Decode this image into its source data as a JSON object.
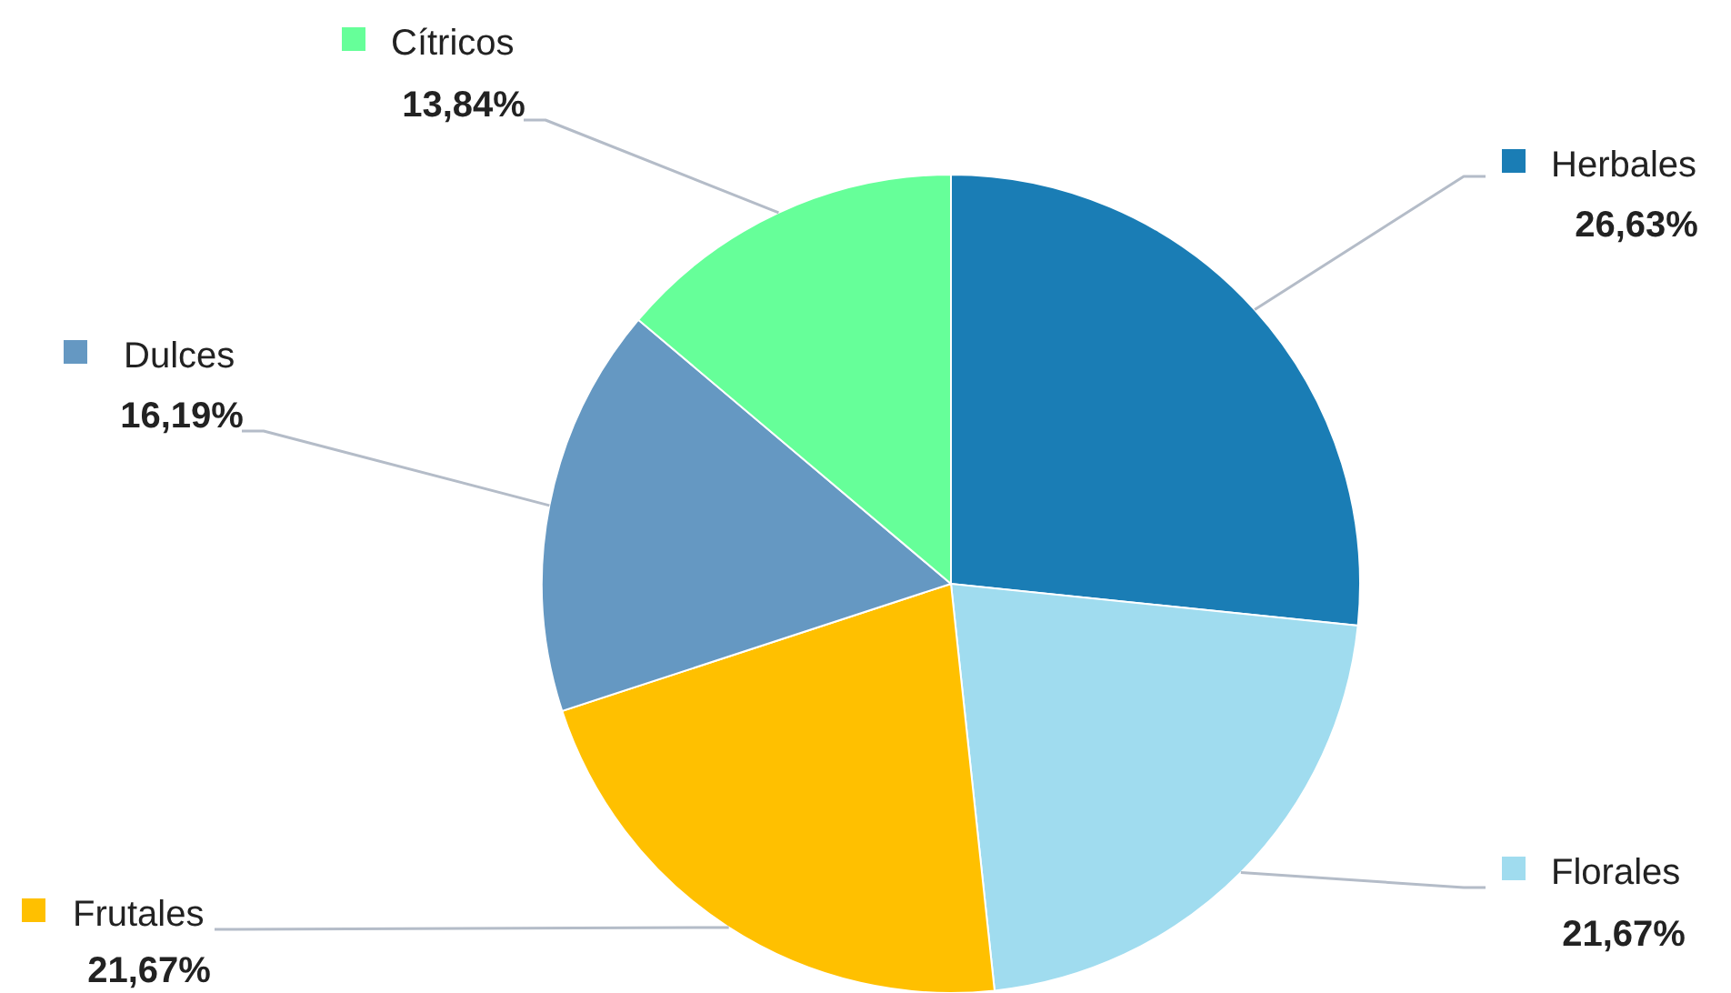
{
  "chart_data": {
    "type": "pie",
    "categories": [
      "Herbales",
      "Florales",
      "Frutales",
      "Dulces",
      "Cítricos"
    ],
    "values": [
      26.63,
      21.67,
      21.67,
      16.19,
      13.84
    ],
    "colors": [
      "#1a7db5",
      "#a0dcef",
      "#ffc000",
      "#6598c2",
      "#66ff99"
    ],
    "value_labels": [
      "26,63%",
      "21,67%",
      "21,67%",
      "16,19%",
      "13,84%"
    ],
    "legend": "top left"
  }
}
